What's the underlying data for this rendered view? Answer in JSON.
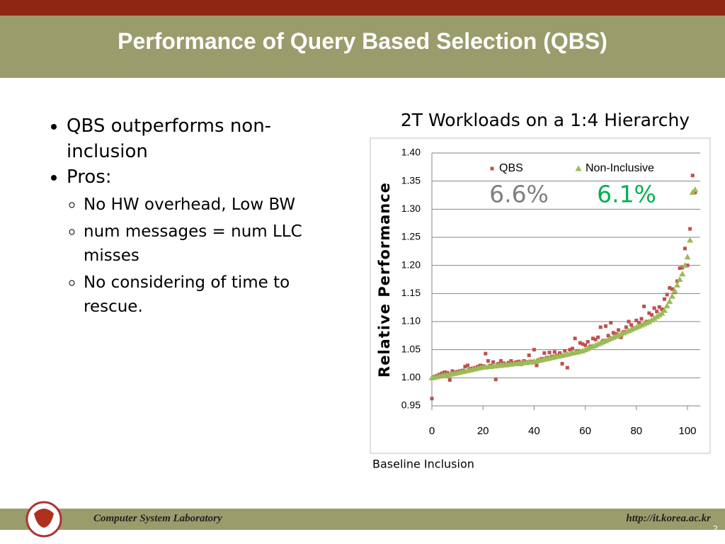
{
  "slide": {
    "title": "Performance of Query Based Selection (QBS)",
    "bullets": [
      {
        "text": "QBS outperforms non-inclusion",
        "sub": []
      },
      {
        "text": "Pros:",
        "sub": [
          "No HW overhead, Low BW",
          "num messages = num LLC misses",
          "No considering of time to rescue."
        ]
      }
    ],
    "footer_left": "Computer System Laboratory",
    "footer_right": "http://it.korea.ac.kr",
    "page_number": "2"
  },
  "chart_data": {
    "type": "scatter",
    "title": "2T Workloads on a 1:4 Hierarchy",
    "y_label": "Relative Performance",
    "x_label": "Baseline Inclusion",
    "annotations": [
      {
        "text": "6.6%",
        "color": "#7f7f7f"
      },
      {
        "text": "6.1%",
        "color": "#00b050"
      }
    ],
    "xlim": [
      0,
      105
    ],
    "xticks": [
      0,
      20,
      40,
      60,
      80,
      100
    ],
    "ylim": [
      0.95,
      1.4
    ],
    "yticks": [
      0.95,
      {
        "value": 1.0,
        "label": "1.00"
      },
      1.05,
      {
        "value": 1.1,
        "label": "1.10"
      },
      1.15,
      {
        "value": 1.2,
        "label": "1.20"
      },
      1.25,
      {
        "value": 1.3,
        "label": "1.30"
      },
      1.35,
      {
        "value": 1.4,
        "label": "1.40"
      }
    ],
    "grid": true,
    "x": [
      0,
      1,
      2,
      3,
      4,
      5,
      6,
      7,
      8,
      9,
      10,
      11,
      12,
      13,
      14,
      15,
      16,
      17,
      18,
      19,
      20,
      21,
      22,
      23,
      24,
      25,
      26,
      27,
      28,
      29,
      30,
      31,
      32,
      33,
      34,
      35,
      36,
      37,
      38,
      39,
      40,
      41,
      42,
      43,
      44,
      45,
      46,
      47,
      48,
      49,
      50,
      51,
      52,
      53,
      54,
      55,
      56,
      57,
      58,
      59,
      60,
      61,
      62,
      63,
      64,
      65,
      66,
      67,
      68,
      69,
      70,
      71,
      72,
      73,
      74,
      75,
      76,
      77,
      78,
      79,
      80,
      81,
      82,
      83,
      84,
      85,
      86,
      87,
      88,
      89,
      90,
      91,
      92,
      93,
      94,
      95,
      96,
      97,
      98,
      99,
      100,
      101,
      102,
      103
    ],
    "series": [
      {
        "name": "QBS",
        "color": "#c0504d",
        "marker": "square",
        "values": [
          0.963,
          1.002,
          1.004,
          1.006,
          1.008,
          1.01,
          1.009,
          0.996,
          1.012,
          1.01,
          1.011,
          1.012,
          1.013,
          1.02,
          1.022,
          1.016,
          1.017,
          1.018,
          1.02,
          1.022,
          1.021,
          1.043,
          1.03,
          1.022,
          1.028,
          0.997,
          1.025,
          1.03,
          1.026,
          1.024,
          1.027,
          1.03,
          1.026,
          1.028,
          1.029,
          1.024,
          1.03,
          1.028,
          1.04,
          1.029,
          1.05,
          1.022,
          1.032,
          1.034,
          1.044,
          1.036,
          1.045,
          1.038,
          1.046,
          1.04,
          1.044,
          1.025,
          1.048,
          1.018,
          1.05,
          1.052,
          1.07,
          1.048,
          1.062,
          1.06,
          1.058,
          1.064,
          1.056,
          1.07,
          1.068,
          1.072,
          1.09,
          1.066,
          1.092,
          1.075,
          1.098,
          1.08,
          1.078,
          1.085,
          1.072,
          1.082,
          1.09,
          1.1,
          1.094,
          1.088,
          1.102,
          1.098,
          1.105,
          1.127,
          1.1,
          1.115,
          1.112,
          1.124,
          1.118,
          1.126,
          1.122,
          1.14,
          1.148,
          1.16,
          1.158,
          1.152,
          1.172,
          1.195,
          1.196,
          1.23,
          1.2,
          1.265,
          1.36,
          1.33
        ]
      },
      {
        "name": "Non-Inclusive",
        "color": "#9bbb59",
        "marker": "triangle",
        "values": [
          1.0,
          1.001,
          1.002,
          1.003,
          1.004,
          1.005,
          1.005,
          1.006,
          1.007,
          1.008,
          1.009,
          1.01,
          1.011,
          1.012,
          1.013,
          1.014,
          1.015,
          1.016,
          1.017,
          1.018,
          1.019,
          1.019,
          1.02,
          1.02,
          1.021,
          1.021,
          1.022,
          1.022,
          1.023,
          1.023,
          1.024,
          1.024,
          1.025,
          1.025,
          1.026,
          1.026,
          1.027,
          1.027,
          1.028,
          1.028,
          1.029,
          1.03,
          1.031,
          1.032,
          1.033,
          1.034,
          1.035,
          1.036,
          1.037,
          1.038,
          1.039,
          1.04,
          1.041,
          1.042,
          1.043,
          1.044,
          1.045,
          1.046,
          1.047,
          1.048,
          1.05,
          1.052,
          1.054,
          1.056,
          1.058,
          1.06,
          1.062,
          1.064,
          1.066,
          1.068,
          1.07,
          1.072,
          1.074,
          1.076,
          1.078,
          1.08,
          1.082,
          1.084,
          1.086,
          1.088,
          1.09,
          1.092,
          1.094,
          1.096,
          1.098,
          1.1,
          1.103,
          1.106,
          1.109,
          1.112,
          1.115,
          1.12,
          1.128,
          1.136,
          1.145,
          1.155,
          1.165,
          1.175,
          1.185,
          1.2,
          1.215,
          1.245,
          1.33,
          1.335
        ]
      }
    ]
  }
}
